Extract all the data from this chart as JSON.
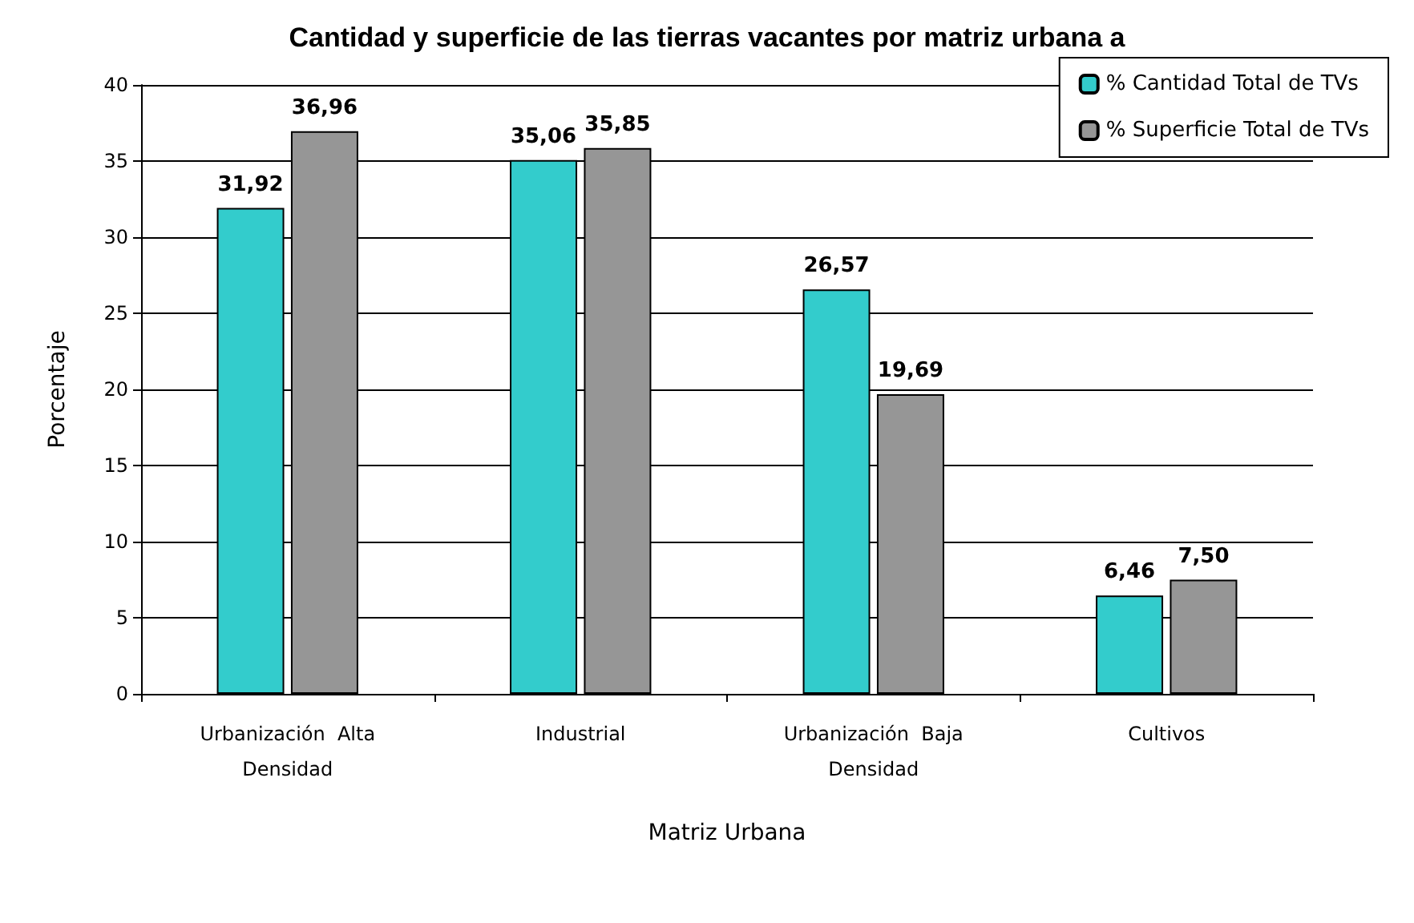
{
  "chart_data": {
    "type": "bar",
    "title": "Cantidad y superficie de las tierras vacantes por matriz urbana a",
    "xlabel": "Matriz Urbana",
    "ylabel": "Porcentaje",
    "categories": [
      "Urbanización  Alta\nDensidad",
      "Industrial",
      "Urbanización  Baja\nDensidad",
      "Cultivos"
    ],
    "series": [
      {
        "name": "% Cantidad Total de TVs",
        "color": "#33cccc",
        "values": [
          31.92,
          35.06,
          26.57,
          6.46
        ],
        "value_labels": [
          "31,92",
          "35,06",
          "26,57",
          "6,46"
        ]
      },
      {
        "name": "% Superficie Total de TVs",
        "color": "#969696",
        "values": [
          36.96,
          35.85,
          19.69,
          7.5
        ],
        "value_labels": [
          "36,96",
          "35,85",
          "19,69",
          "7,50"
        ]
      }
    ],
    "ylim": [
      0,
      40
    ],
    "yticks": [
      0,
      5,
      10,
      15,
      20,
      25,
      30,
      35,
      40
    ],
    "grid": "y",
    "legend": "top right"
  }
}
